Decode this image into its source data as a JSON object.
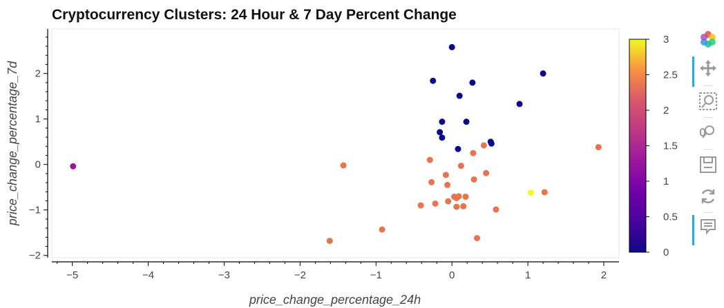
{
  "chart_data": {
    "type": "scatter",
    "title": "Cryptocurrency Clusters: 24 Hour & 7 Day Percent Change",
    "xlabel": "price_change_percentage_24h",
    "ylabel": "price_change_percentage_7d",
    "xlim": [
      -5.27,
      2.2
    ],
    "ylim": [
      -2.05,
      2.98
    ],
    "xticks": [
      -5,
      -4,
      -3,
      -2,
      -1,
      0,
      1,
      2
    ],
    "yticks": [
      -2,
      -1,
      0,
      1,
      2
    ],
    "xtick_labels": [
      "−5",
      "−4",
      "−3",
      "−2",
      "−1",
      "0",
      "1",
      "2"
    ],
    "ytick_labels": [
      "−2",
      "−1",
      "0",
      "1",
      "2"
    ],
    "grid": false,
    "colorbar": {
      "range": [
        0,
        3
      ],
      "ticks": [
        0,
        0.5,
        1,
        1.5,
        2,
        2.5,
        3
      ],
      "tick_labels": [
        "0",
        "0.5",
        "1",
        "1.5",
        "2",
        "2.5",
        "3"
      ],
      "palette": "plasma"
    },
    "points": [
      {
        "x": 0.0,
        "y": 2.58,
        "c": 0
      },
      {
        "x": 1.2,
        "y": 2.0,
        "c": 0
      },
      {
        "x": -0.25,
        "y": 1.84,
        "c": 0
      },
      {
        "x": 0.27,
        "y": 1.8,
        "c": 0
      },
      {
        "x": 0.1,
        "y": 1.51,
        "c": 0
      },
      {
        "x": 0.89,
        "y": 1.33,
        "c": 0
      },
      {
        "x": -0.13,
        "y": 0.94,
        "c": 0
      },
      {
        "x": 0.19,
        "y": 0.94,
        "c": 0
      },
      {
        "x": -0.16,
        "y": 0.71,
        "c": 0
      },
      {
        "x": -0.13,
        "y": 0.59,
        "c": 0
      },
      {
        "x": 0.51,
        "y": 0.5,
        "c": 0
      },
      {
        "x": 0.52,
        "y": 0.46,
        "c": 0
      },
      {
        "x": 0.08,
        "y": 0.34,
        "c": 0
      },
      {
        "x": -4.99,
        "y": -0.04,
        "c": 1
      },
      {
        "x": 1.93,
        "y": 0.38,
        "c": 2
      },
      {
        "x": 0.42,
        "y": 0.42,
        "c": 2
      },
      {
        "x": 0.28,
        "y": 0.25,
        "c": 2
      },
      {
        "x": -0.29,
        "y": 0.1,
        "c": 2
      },
      {
        "x": -1.43,
        "y": -0.02,
        "c": 2
      },
      {
        "x": 0.12,
        "y": -0.03,
        "c": 2
      },
      {
        "x": -0.08,
        "y": -0.23,
        "c": 2
      },
      {
        "x": 0.45,
        "y": -0.19,
        "c": 2
      },
      {
        "x": 0.29,
        "y": -0.33,
        "c": 2
      },
      {
        "x": -0.27,
        "y": -0.39,
        "c": 2
      },
      {
        "x": -0.06,
        "y": -0.45,
        "c": 2
      },
      {
        "x": 1.22,
        "y": -0.61,
        "c": 2
      },
      {
        "x": 0.03,
        "y": -0.71,
        "c": 2
      },
      {
        "x": 0.09,
        "y": -0.7,
        "c": 2
      },
      {
        "x": 0.18,
        "y": -0.71,
        "c": 2
      },
      {
        "x": 0.06,
        "y": -0.74,
        "c": 2
      },
      {
        "x": -0.05,
        "y": -0.81,
        "c": 2
      },
      {
        "x": -0.22,
        "y": -0.86,
        "c": 2
      },
      {
        "x": -0.41,
        "y": -0.9,
        "c": 2
      },
      {
        "x": 0.06,
        "y": -0.93,
        "c": 2
      },
      {
        "x": 0.15,
        "y": -0.92,
        "c": 2
      },
      {
        "x": 0.58,
        "y": -0.99,
        "c": 2
      },
      {
        "x": -0.92,
        "y": -1.43,
        "c": 2
      },
      {
        "x": 0.33,
        "y": -1.62,
        "c": 2
      },
      {
        "x": -1.61,
        "y": -1.68,
        "c": 2
      },
      {
        "x": 1.04,
        "y": -0.62,
        "c": 3
      }
    ]
  },
  "toolbar": {
    "tools": [
      {
        "name": "bokeh-logo-icon",
        "active": false
      },
      {
        "name": "pan-tool-icon",
        "active": true
      },
      {
        "name": "box-zoom-tool-icon",
        "active": false
      },
      {
        "name": "wheel-zoom-tool-icon",
        "active": false
      },
      {
        "name": "save-tool-icon",
        "active": false
      },
      {
        "name": "reset-tool-icon",
        "active": false
      },
      {
        "name": "hover-tool-icon",
        "active": true
      }
    ]
  }
}
